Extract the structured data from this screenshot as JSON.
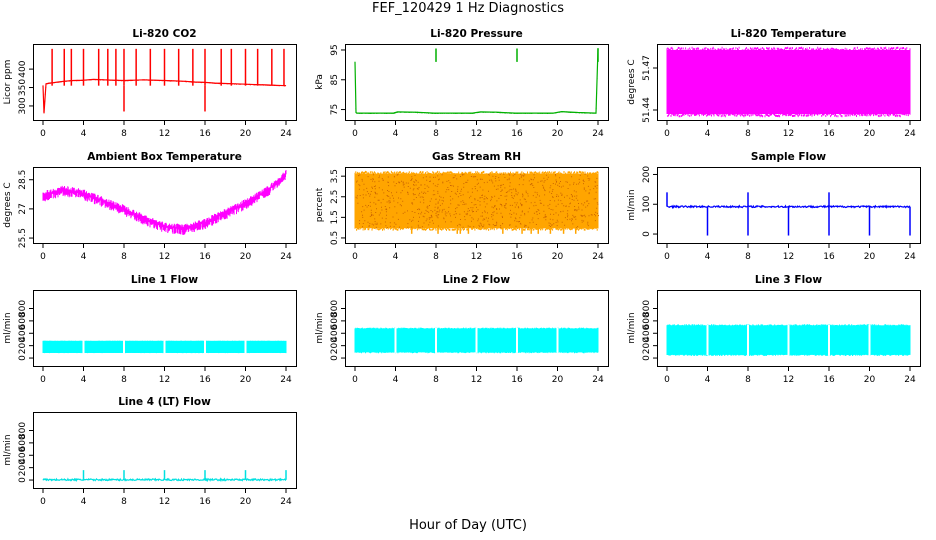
{
  "figure": {
    "title": "FEF_120429  1 Hz Diagnostics",
    "xlabel": "Hour of Day (UTC)"
  },
  "chart_data": [
    {
      "type": "line",
      "title": "Li-820 CO2",
      "ylabel": "Licor ppm",
      "color": "#ff0000",
      "xlim": [
        0,
        24
      ],
      "xticks": [
        0,
        4,
        8,
        12,
        16,
        20,
        24
      ],
      "ylim": [
        270,
        460
      ],
      "yticks": [
        300,
        350,
        400
      ],
      "series": [
        {
          "x": [
            0,
            0.1,
            0.3,
            0.6,
            1,
            1.5,
            2,
            3,
            4,
            5,
            6,
            7,
            8,
            9,
            10,
            11,
            12,
            13,
            14,
            15,
            16,
            17,
            18,
            19,
            20,
            21,
            22,
            23,
            24
          ],
          "y": [
            355,
            280,
            360,
            362,
            363,
            365,
            367,
            369,
            370,
            372,
            371,
            370,
            369,
            370,
            371,
            370,
            369,
            368,
            367,
            365,
            364,
            362,
            361,
            360,
            359,
            358,
            357,
            356,
            355
          ],
          "spikes": [
            0.9,
            2.1,
            2.8,
            4,
            5.5,
            6.4,
            7.2,
            8,
            9.2,
            10.6,
            12,
            13.4,
            14.8,
            16,
            17.6,
            18.6,
            20,
            21.2,
            22.6,
            23.8
          ],
          "spike_y": 455,
          "dips": [
            8,
            16
          ],
          "dip_y": 285
        }
      ]
    },
    {
      "type": "line",
      "title": "Li-820 Pressure",
      "ylabel": "kPa",
      "color": "#00b000",
      "xlim": [
        0,
        24
      ],
      "xticks": [
        0,
        4,
        8,
        12,
        16,
        20,
        24
      ],
      "ylim": [
        72.5,
        96
      ],
      "yticks": [
        75,
        85,
        95
      ],
      "series": [
        {
          "x": [
            0,
            0.1,
            0.2,
            2,
            3.8,
            4.2,
            6,
            7.8,
            8.2,
            10,
            11.6,
            12.4,
            14,
            15.8,
            16.2,
            18,
            19.6,
            20.4,
            22,
            23.8,
            24
          ],
          "y": [
            91,
            74,
            73.8,
            73.8,
            73.8,
            74.2,
            74.1,
            73.8,
            73.8,
            73.8,
            73.8,
            74.2,
            74.1,
            73.8,
            73.8,
            73.8,
            73.8,
            74.3,
            74,
            73.8,
            95.5
          ],
          "spikes": [
            8,
            16,
            24
          ],
          "spike_y": 95.5
        }
      ]
    },
    {
      "type": "area",
      "title": "Li-820 Temperature",
      "ylabel": "degrees C",
      "color": "#ff00ff",
      "xlim": [
        0,
        24
      ],
      "xticks": [
        0,
        4,
        8,
        12,
        16,
        20,
        24
      ],
      "ylim": [
        51.435,
        51.485
      ],
      "yticks": [
        51.44,
        51.47
      ],
      "series": [
        {
          "x": [
            0,
            24
          ],
          "ymin": 51.4375,
          "ymax": 51.4825
        }
      ]
    },
    {
      "type": "line",
      "title": "Ambient Box Temperature",
      "ylabel": "degrees C",
      "color": "#ff00ff",
      "xlim": [
        0,
        24
      ],
      "xticks": [
        0,
        4,
        8,
        12,
        16,
        20,
        24
      ],
      "ylim": [
        25.4,
        29.0
      ],
      "yticks": [
        25.5,
        27.0,
        28.5
      ],
      "series": [
        {
          "x": [
            0,
            2,
            4,
            6,
            8,
            10,
            12,
            14,
            16,
            18,
            20,
            22,
            23,
            24
          ],
          "y": [
            27.7,
            28.0,
            27.8,
            27.4,
            27.0,
            26.5,
            26.1,
            26.0,
            26.3,
            26.8,
            27.3,
            27.9,
            28.3,
            28.8
          ],
          "noise": 0.35
        }
      ]
    },
    {
      "type": "area",
      "title": "Gas Stream RH",
      "ylabel": "percent",
      "color": "#ffa500",
      "xlim": [
        0,
        24
      ],
      "xticks": [
        0,
        4,
        8,
        12,
        16,
        20,
        24
      ],
      "ylim": [
        0.4,
        3.8
      ],
      "yticks": [
        0.5,
        1.5,
        2.5,
        3.5
      ],
      "series": [
        {
          "x": [
            0,
            24
          ],
          "ymin": 1.0,
          "ymax": 3.6,
          "dips": [
            5.6,
            8.2,
            10.1,
            10.4,
            11.2,
            14.6,
            16.5,
            17.4,
            18.1,
            19.3,
            20.6,
            21.8
          ],
          "dip_y": 0.7
        }
      ]
    },
    {
      "type": "line",
      "title": "Sample Flow",
      "ylabel": "ml/min",
      "color": "#0000ff",
      "xlim": [
        0,
        24
      ],
      "xticks": [
        0,
        4,
        8,
        12,
        16,
        20,
        24
      ],
      "ylim": [
        -20,
        215
      ],
      "yticks": [
        0,
        100,
        200
      ],
      "series": [
        {
          "x": [
            0,
            24
          ],
          "y": [
            92,
            92
          ],
          "spikes": [
            0,
            8,
            16
          ],
          "spike_y": 140,
          "dips": [
            4,
            8,
            12,
            16,
            20,
            24
          ],
          "dip_y": -5
        }
      ]
    },
    {
      "type": "area",
      "title": "Line 1 Flow",
      "ylabel": "ml/min",
      "color": "#00ffff",
      "xlim": [
        0,
        24
      ],
      "xticks": [
        0,
        4,
        8,
        12,
        16,
        20,
        24
      ],
      "ylim": [
        -80,
        1050
      ],
      "yticks": [
        0,
        200,
        400,
        600,
        800
      ],
      "series": [
        {
          "x": [
            0,
            24
          ],
          "ymin": 90,
          "ymax": 270,
          "gaps": [
            4,
            8,
            12,
            16,
            20
          ]
        }
      ]
    },
    {
      "type": "area",
      "title": "Line 2 Flow",
      "ylabel": "ml/min",
      "color": "#00ffff",
      "xlim": [
        0,
        24
      ],
      "xticks": [
        0,
        4,
        8,
        12,
        16,
        20,
        24
      ],
      "ylim": [
        -80,
        1050
      ],
      "yticks": [
        0,
        200,
        400,
        600,
        800
      ],
      "series": [
        {
          "x": [
            0,
            24
          ],
          "ymin": 100,
          "ymax": 470,
          "gaps": [
            4,
            8,
            12,
            16,
            20
          ]
        }
      ]
    },
    {
      "type": "area",
      "title": "Line 3 Flow",
      "ylabel": "ml/min",
      "color": "#00ffff",
      "xlim": [
        0,
        24
      ],
      "xticks": [
        0,
        4,
        8,
        12,
        16,
        20,
        24
      ],
      "ylim": [
        -80,
        1050
      ],
      "yticks": [
        0,
        200,
        400,
        600,
        800
      ],
      "series": [
        {
          "x": [
            0,
            24
          ],
          "ymin": 60,
          "ymax": 520,
          "gaps": [
            4,
            8,
            12,
            16,
            20
          ]
        }
      ]
    },
    {
      "type": "line",
      "title": "Line 4 (LT) Flow",
      "ylabel": "ml/min",
      "color": "#00e0e0",
      "xlim": [
        0,
        24
      ],
      "xticks": [
        0,
        4,
        8,
        12,
        16,
        20,
        24
      ],
      "ylim": [
        -80,
        1050
      ],
      "yticks": [
        0,
        200,
        400,
        600,
        800
      ],
      "series": [
        {
          "x": [
            0,
            24
          ],
          "y": [
            5,
            5
          ],
          "spikes": [
            4,
            8,
            12,
            16,
            20,
            24
          ],
          "spike_y": 160
        }
      ]
    }
  ]
}
